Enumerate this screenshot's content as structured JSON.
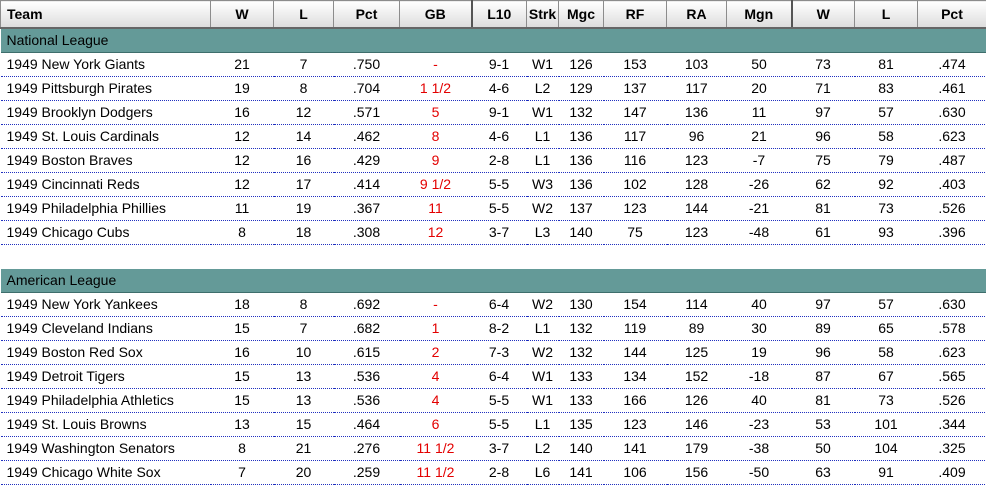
{
  "headers": [
    "Team",
    "W",
    "L",
    "Pct",
    "GB",
    "L10",
    "Strk",
    "Mgc",
    "RF",
    "RA",
    "Mgn",
    "W",
    "L",
    "Pct"
  ],
  "leagues": [
    {
      "name": "National League",
      "rows": [
        [
          "1949 New York Giants",
          "21",
          "7",
          ".750",
          "-",
          "9-1",
          "W1",
          "126",
          "153",
          "103",
          "50",
          "73",
          "81",
          ".474"
        ],
        [
          "1949 Pittsburgh Pirates",
          "19",
          "8",
          ".704",
          "1 1/2",
          "4-6",
          "L2",
          "129",
          "137",
          "117",
          "20",
          "71",
          "83",
          ".461"
        ],
        [
          "1949 Brooklyn Dodgers",
          "16",
          "12",
          ".571",
          "5",
          "9-1",
          "W1",
          "132",
          "147",
          "136",
          "11",
          "97",
          "57",
          ".630"
        ],
        [
          "1949 St. Louis Cardinals",
          "12",
          "14",
          ".462",
          "8",
          "4-6",
          "L1",
          "136",
          "117",
          "96",
          "21",
          "96",
          "58",
          ".623"
        ],
        [
          "1949 Boston Braves",
          "12",
          "16",
          ".429",
          "9",
          "2-8",
          "L1",
          "136",
          "116",
          "123",
          "-7",
          "75",
          "79",
          ".487"
        ],
        [
          "1949 Cincinnati Reds",
          "12",
          "17",
          ".414",
          "9 1/2",
          "5-5",
          "W3",
          "136",
          "102",
          "128",
          "-26",
          "62",
          "92",
          ".403"
        ],
        [
          "1949 Philadelphia Phillies",
          "11",
          "19",
          ".367",
          "11",
          "5-5",
          "W2",
          "137",
          "123",
          "144",
          "-21",
          "81",
          "73",
          ".526"
        ],
        [
          "1949 Chicago Cubs",
          "8",
          "18",
          ".308",
          "12",
          "3-7",
          "L3",
          "140",
          "75",
          "123",
          "-48",
          "61",
          "93",
          ".396"
        ]
      ]
    },
    {
      "name": "American League",
      "rows": [
        [
          "1949 New York Yankees",
          "18",
          "8",
          ".692",
          "-",
          "6-4",
          "W2",
          "130",
          "154",
          "114",
          "40",
          "97",
          "57",
          ".630"
        ],
        [
          "1949 Cleveland Indians",
          "15",
          "7",
          ".682",
          "1",
          "8-2",
          "L1",
          "132",
          "119",
          "89",
          "30",
          "89",
          "65",
          ".578"
        ],
        [
          "1949 Boston Red Sox",
          "16",
          "10",
          ".615",
          "2",
          "7-3",
          "W2",
          "132",
          "144",
          "125",
          "19",
          "96",
          "58",
          ".623"
        ],
        [
          "1949 Detroit Tigers",
          "15",
          "13",
          ".536",
          "4",
          "6-4",
          "W1",
          "133",
          "134",
          "152",
          "-18",
          "87",
          "67",
          ".565"
        ],
        [
          "1949 Philadelphia Athletics",
          "15",
          "13",
          ".536",
          "4",
          "5-5",
          "W1",
          "133",
          "166",
          "126",
          "40",
          "81",
          "73",
          ".526"
        ],
        [
          "1949 St. Louis Browns",
          "13",
          "15",
          ".464",
          "6",
          "5-5",
          "L1",
          "135",
          "123",
          "146",
          "-23",
          "53",
          "101",
          ".344"
        ],
        [
          "1949 Washington Senators",
          "8",
          "21",
          ".276",
          "11 1/2",
          "3-7",
          "L2",
          "140",
          "141",
          "179",
          "-38",
          "50",
          "104",
          ".325"
        ],
        [
          "1949 Chicago White Sox",
          "7",
          "20",
          ".259",
          "11 1/2",
          "2-8",
          "L6",
          "141",
          "106",
          "156",
          "-50",
          "63",
          "91",
          ".409"
        ]
      ]
    }
  ],
  "colors": {
    "league_bar": "#649a98",
    "games_back": "#e30000",
    "row_rule": "#2030c0"
  }
}
